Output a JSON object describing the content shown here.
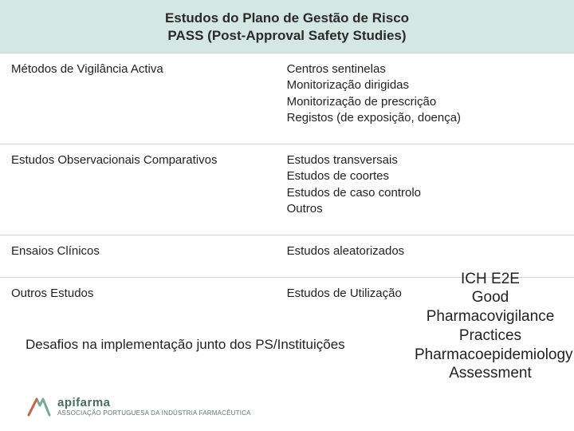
{
  "header": {
    "line1": "Estudos do Plano de Gestão de Risco",
    "line2": "PASS  (Post-Approval Safety Studies)"
  },
  "table": {
    "rows": [
      {
        "left": "Métodos de Vigilância Activa",
        "right": "Centros sentinelas\nMonitorização dirigidas\nMonitorização de prescrição\nRegistos (de exposição, doença)"
      },
      {
        "left": "Estudos  Observacionais Comparativos",
        "right": "Estudos transversais\nEstudos de coortes\nEstudos  de caso controlo\nOutros"
      },
      {
        "left": "Ensaios Clínicos",
        "right": "Estudos aleatorizados"
      },
      {
        "left": "Outros Estudos",
        "right": "Estudos de Utilização"
      }
    ]
  },
  "footer_note": "Desafios na implementação junto dos PS/Instituições",
  "side_text": "ICH E2E\nGood Pharmacovigilance Practices\nPharmacoepidemiology Assessment",
  "logo": {
    "brand": "apifarma",
    "subtitle": "ASSOCIAÇÃO PORTUGUESA DA INDÚSTRIA FARMACÊUTICA"
  },
  "colors": {
    "header_bg": "#d4e7e2",
    "border": "#c9d8d4",
    "text": "#222222",
    "logo": "#4a6b62"
  }
}
